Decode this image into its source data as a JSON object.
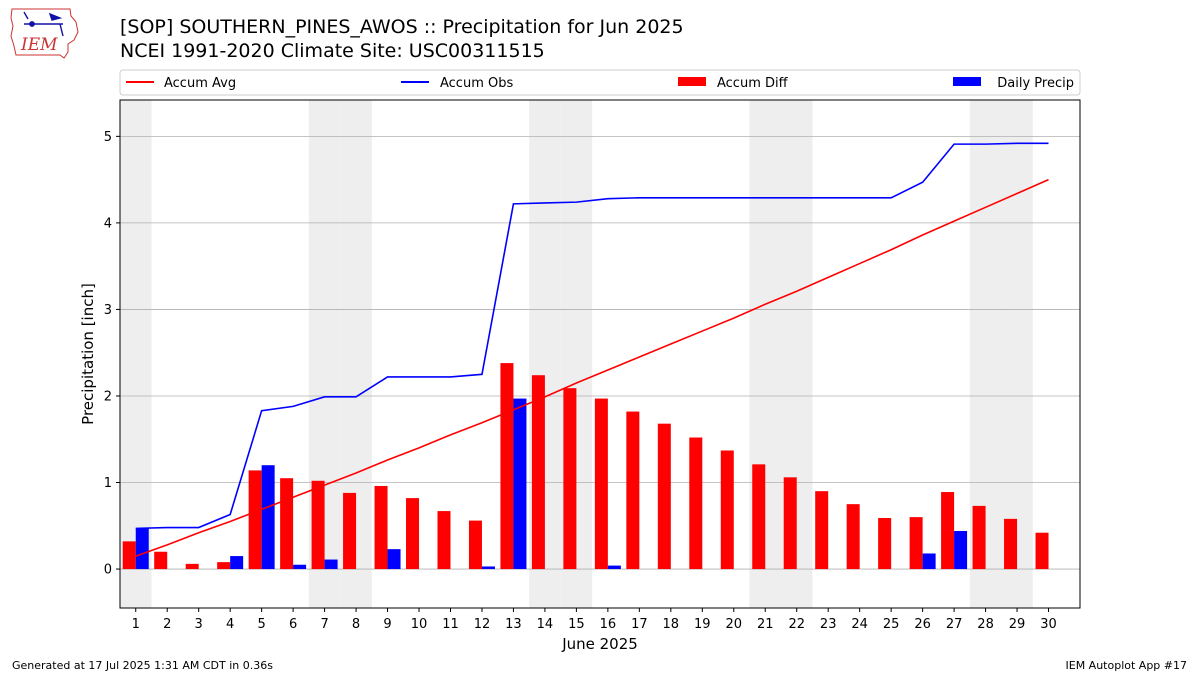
{
  "header": {
    "title_line1": "[SOP] SOUTHERN_PINES_AWOS :: Precipitation for Jun 2025",
    "title_line2": "NCEI 1991-2020 Climate Site: USC00311515",
    "logo_text": "IEM"
  },
  "footer": {
    "left": "Generated at 17 Jul 2025 1:31 AM CDT in 0.36s",
    "right": "IEM Autoplot App #17"
  },
  "colors": {
    "avg": "#ff0000",
    "obs": "#0000ff",
    "diff": "#ff0000",
    "daily": "#0000ff",
    "weekend": "#eeeeee",
    "grid": "#b0b0b0"
  },
  "chart_data": {
    "type": "bar",
    "xlabel": "June 2025",
    "ylabel": "Precipitation [inch]",
    "ylim": [
      -0.45,
      5.42
    ],
    "yticks": [
      0,
      1,
      2,
      3,
      4,
      5
    ],
    "xlim": [
      0.5,
      31
    ],
    "grid": "y",
    "legend_placement": "top, above plot",
    "days": [
      1,
      2,
      3,
      4,
      5,
      6,
      7,
      8,
      9,
      10,
      11,
      12,
      13,
      14,
      15,
      16,
      17,
      18,
      19,
      20,
      21,
      22,
      23,
      24,
      25,
      26,
      27,
      28,
      29,
      30
    ],
    "weekend_days": [
      1,
      7,
      8,
      14,
      15,
      21,
      22,
      28,
      29
    ],
    "series": [
      {
        "name": "Accum Avg",
        "kind": "line",
        "values": [
          0.15,
          0.28,
          0.42,
          0.55,
          0.69,
          0.83,
          0.97,
          1.11,
          1.26,
          1.4,
          1.55,
          1.69,
          1.84,
          1.99,
          2.15,
          2.3,
          2.45,
          2.6,
          2.75,
          2.9,
          3.06,
          3.21,
          3.37,
          3.53,
          3.69,
          3.86,
          4.02,
          4.18,
          4.34,
          4.5
        ]
      },
      {
        "name": "Accum Obs",
        "kind": "line",
        "values": [
          0.47,
          0.48,
          0.48,
          0.63,
          1.83,
          1.88,
          1.99,
          1.99,
          2.22,
          2.22,
          2.22,
          2.25,
          4.22,
          4.23,
          4.24,
          4.28,
          4.29,
          4.29,
          4.29,
          4.29,
          4.29,
          4.29,
          4.29,
          4.29,
          4.29,
          4.47,
          4.91,
          4.91,
          4.92,
          4.92
        ]
      },
      {
        "name": "Accum Diff",
        "kind": "bar",
        "values": [
          0.32,
          0.2,
          0.06,
          0.08,
          1.14,
          1.05,
          1.02,
          0.88,
          0.96,
          0.82,
          0.67,
          0.56,
          2.38,
          2.24,
          2.09,
          1.97,
          1.82,
          1.68,
          1.52,
          1.37,
          1.21,
          1.06,
          0.9,
          0.75,
          0.59,
          0.6,
          0.89,
          0.73,
          0.58,
          0.42
        ]
      },
      {
        "name": "Daily Precip",
        "kind": "bar",
        "values": [
          0.47,
          0,
          0,
          0.15,
          1.2,
          0.05,
          0.11,
          0,
          0.23,
          0,
          0,
          0.03,
          1.97,
          0,
          0,
          0.04,
          0,
          0,
          0,
          0,
          0,
          0,
          0,
          0,
          0,
          0.18,
          0.44,
          0,
          0,
          0
        ]
      }
    ]
  }
}
